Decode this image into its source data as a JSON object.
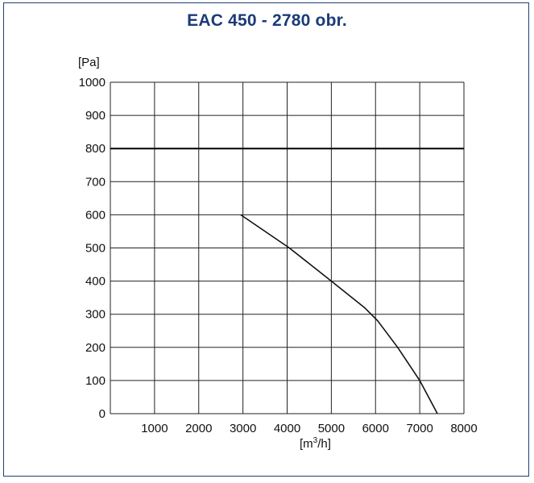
{
  "chart_data": {
    "type": "line",
    "title": "EAC 450 - 2780 obr.",
    "ylabel": "[Pa]",
    "xlabel_base": "[m",
    "xlabel_sup": "3",
    "xlabel_tail": "/h]",
    "xlim": [
      0,
      8000
    ],
    "ylim": [
      0,
      1000
    ],
    "x_ticks": [
      1000,
      2000,
      3000,
      4000,
      5000,
      6000,
      7000,
      8000
    ],
    "y_ticks": [
      0,
      100,
      200,
      300,
      400,
      500,
      600,
      700,
      800,
      900,
      1000
    ],
    "grid": true,
    "reference_line": {
      "y": 800
    },
    "series": [
      {
        "x": [
          2950,
          4050,
          5000,
          5750,
          6050,
          6500,
          7000,
          7400
        ],
        "y": [
          600,
          500,
          400,
          320,
          280,
          200,
          100,
          0
        ]
      }
    ],
    "colors": {
      "title": "#1b3a78",
      "frame": "#1f3f7a",
      "grid": "#222222",
      "curve": "#111111"
    }
  }
}
